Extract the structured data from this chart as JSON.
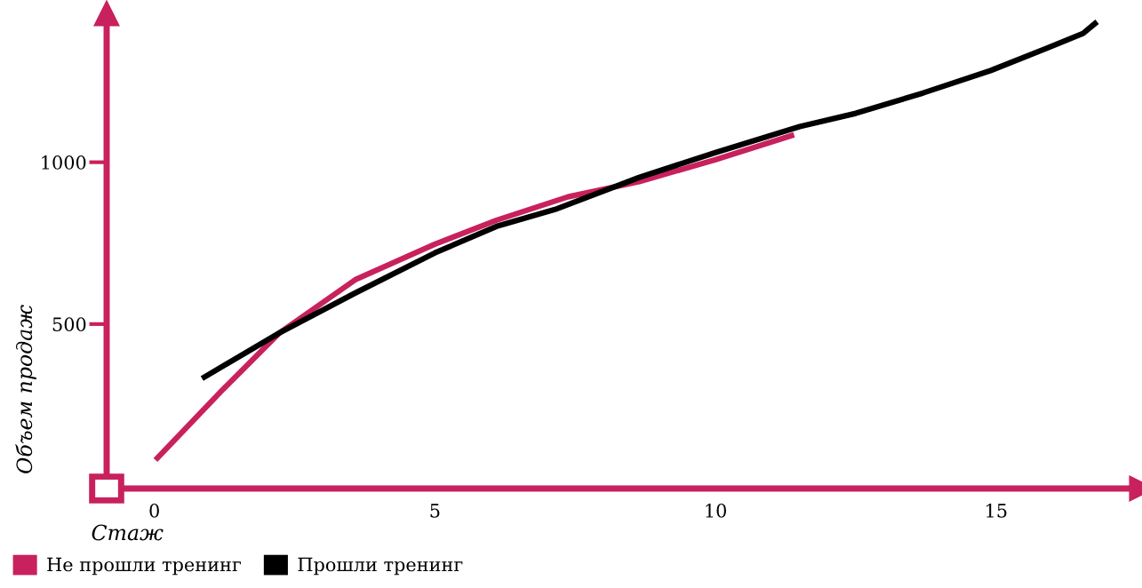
{
  "chart_data": {
    "type": "line",
    "xlabel": "Стаж",
    "ylabel": "Объем продаж",
    "xlim": [
      -0.85,
      17.6
    ],
    "ylim": [
      -8,
      1460
    ],
    "xticks": [
      0,
      5,
      10,
      15
    ],
    "yticks": [
      500,
      1000
    ],
    "grid": false,
    "legend": "bottom left",
    "marker": "none",
    "line_style": "solid",
    "series": [
      {
        "name": "Не прошли тренинг",
        "color": "#c8215d",
        "x": [
          0.02,
          1.2,
          2.23,
          3.58,
          5,
          6.1,
          7.37,
          8.64,
          10,
          11.4
        ],
        "values": [
          80,
          294,
          473,
          637,
          747,
          821,
          893,
          940,
          1008,
          1085
        ]
      },
      {
        "name": "Прошли тренинг",
        "color": "#000000",
        "x": [
          0.85,
          2.23,
          3.58,
          5,
          6.1,
          7.14,
          8.64,
          10,
          11.5,
          12.5,
          13.7,
          14.9,
          15.9,
          16.55,
          16.8
        ],
        "values": [
          332,
          473,
          596,
          720,
          802,
          854,
          953,
          1030,
          1110,
          1151,
          1214,
          1283,
          1352,
          1398,
          1434
        ]
      }
    ]
  }
}
